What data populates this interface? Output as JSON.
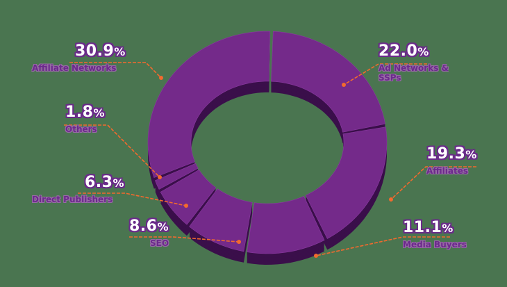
{
  "chart_data": {
    "type": "pie",
    "variant": "3d-donut",
    "title": "",
    "legend_position": "labels around chart",
    "categories": [
      "Ad Networks & SSPs",
      "Affiliates",
      "Media Buyers",
      "SEO",
      "Direct Publishers",
      "Others",
      "Affiliate Networks"
    ],
    "values": [
      22.0,
      19.3,
      11.1,
      8.6,
      6.3,
      1.8,
      30.9
    ],
    "unit": "%",
    "colors": {
      "segment_top": "#742a8a",
      "segment_side": "#3a0f4a",
      "leader_line": "#f26a2e",
      "background": "#4a7550",
      "percent_text": "#ffffff",
      "percent_outline": "#6a2a8a",
      "category_text": "#6b2a8c"
    }
  },
  "labels": [
    {
      "id": "affiliate-networks",
      "pct": "30.9",
      "sign": "%",
      "name": "Affiliate Networks"
    },
    {
      "id": "ad-networks",
      "pct": "22.0",
      "sign": "%",
      "name": "Ad Networks &",
      "name2": "SSPs"
    },
    {
      "id": "others",
      "pct": "1.8",
      "sign": "%",
      "name": "Others"
    },
    {
      "id": "affiliates",
      "pct": "19.3",
      "sign": "%",
      "name": "Affiliates"
    },
    {
      "id": "direct-publishers",
      "pct": "6.3",
      "sign": "%",
      "name": "Direct Publishers"
    },
    {
      "id": "seo",
      "pct": "8.6",
      "sign": "%",
      "name": "SEO"
    },
    {
      "id": "media-buyers",
      "pct": "11.1",
      "sign": "%",
      "name": "Media Buyers"
    }
  ]
}
